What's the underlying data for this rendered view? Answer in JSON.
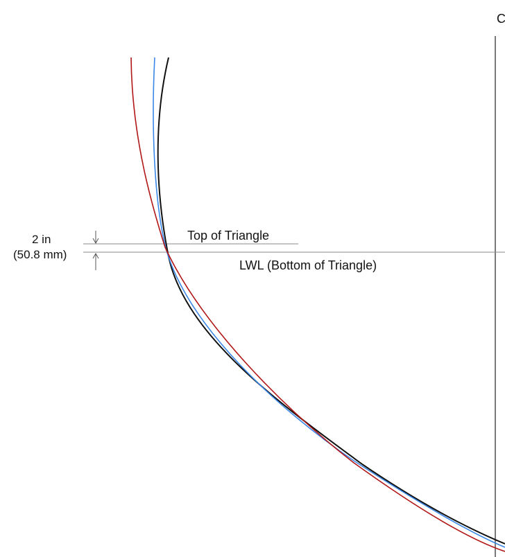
{
  "labels": {
    "top_of_triangle": "Top of Triangle",
    "lwl": "LWL (Bottom of Triangle)",
    "dimension_in": "2 in",
    "dimension_mm": "(50.8 mm)",
    "edge_glyph": "C"
  },
  "colors": {
    "curve_black": "#111111",
    "curve_blue": "#3a86e8",
    "curve_red": "#b01616",
    "reference_line": "#8a8a8a",
    "arrow": "#555555",
    "vertical_axis": "#222222"
  }
}
